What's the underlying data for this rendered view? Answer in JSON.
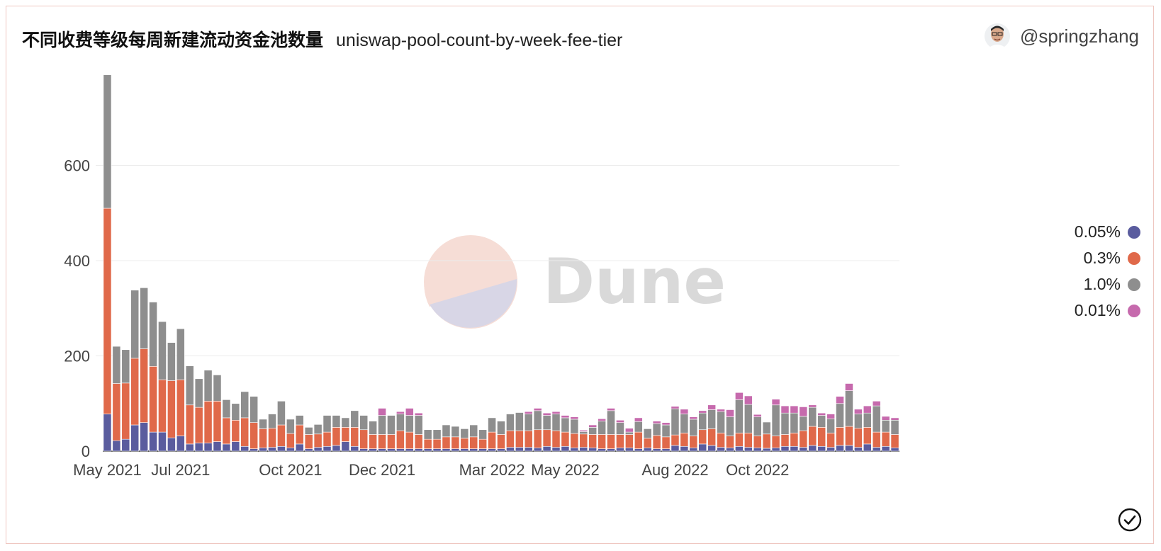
{
  "header": {
    "title": "不同收费等级每周新建流动资金池数量",
    "subtitle": "uniswap-pool-count-by-week-fee-tier",
    "author": "@springzhang"
  },
  "watermark": {
    "text": "Dune"
  },
  "icons": {
    "avatar": "avatar-icon",
    "verified": "checkmark-circle-icon"
  },
  "chart_data": {
    "type": "bar",
    "stacked": true,
    "grid": true,
    "legend_position": "right",
    "ylim": [
      0,
      790
    ],
    "yticks": [
      0,
      200,
      400,
      600
    ],
    "xticks": [
      {
        "label": "May 2021",
        "index": 0
      },
      {
        "label": "Jul 2021",
        "index": 8
      },
      {
        "label": "Oct 2021",
        "index": 20
      },
      {
        "label": "Dec 2021",
        "index": 30
      },
      {
        "label": "Mar 2022",
        "index": 42
      },
      {
        "label": "May 2022",
        "index": 50
      },
      {
        "label": "Aug 2022",
        "index": 62
      },
      {
        "label": "Oct 2022",
        "index": 71
      }
    ],
    "series": [
      {
        "name": "0.05%",
        "color": "#5a5c9e",
        "values": [
          78,
          22,
          25,
          55,
          60,
          40,
          40,
          28,
          32,
          15,
          17,
          17,
          20,
          15,
          20,
          10,
          5,
          7,
          8,
          10,
          7,
          15,
          5,
          8,
          10,
          12,
          20,
          10,
          5,
          5,
          5,
          5,
          5,
          5,
          5,
          5,
          5,
          5,
          5,
          5,
          5,
          5,
          5,
          5,
          8,
          8,
          8,
          7,
          10,
          8,
          10,
          7,
          8,
          7,
          5,
          5,
          7,
          7,
          5,
          7,
          5,
          5,
          12,
          10,
          7,
          15,
          12,
          8,
          7,
          10,
          8,
          7,
          6,
          7,
          10,
          10,
          8,
          12,
          10,
          8,
          12,
          12,
          8,
          15,
          8,
          10,
          7
        ]
      },
      {
        "name": "0.3%",
        "color": "#e0694a",
        "values": [
          432,
          120,
          118,
          140,
          155,
          138,
          110,
          120,
          118,
          82,
          75,
          88,
          85,
          55,
          45,
          60,
          55,
          40,
          40,
          45,
          30,
          40,
          30,
          28,
          30,
          38,
          30,
          40,
          40,
          30,
          30,
          30,
          38,
          35,
          30,
          20,
          20,
          25,
          25,
          22,
          25,
          20,
          35,
          30,
          35,
          35,
          35,
          38,
          35,
          35,
          30,
          30,
          28,
          28,
          30,
          30,
          28,
          28,
          35,
          20,
          28,
          25,
          22,
          28,
          25,
          30,
          35,
          30,
          25,
          28,
          30,
          25,
          30,
          25,
          25,
          28,
          35,
          40,
          40,
          30,
          38,
          40,
          40,
          35,
          32,
          30,
          28
        ]
      },
      {
        "name": "1.0%",
        "color": "#8e8e8e",
        "values": [
          280,
          78,
          70,
          143,
          128,
          135,
          122,
          80,
          107,
          82,
          60,
          65,
          55,
          38,
          35,
          55,
          55,
          20,
          30,
          50,
          30,
          20,
          15,
          20,
          35,
          25,
          20,
          35,
          30,
          28,
          40,
          40,
          35,
          35,
          40,
          20,
          20,
          25,
          22,
          20,
          25,
          20,
          30,
          28,
          35,
          38,
          35,
          40,
          30,
          35,
          30,
          30,
          5,
          15,
          28,
          50,
          25,
          5,
          22,
          20,
          25,
          25,
          55,
          40,
          35,
          35,
          40,
          45,
          40,
          70,
          60,
          40,
          25,
          65,
          45,
          42,
          30,
          40,
          25,
          30,
          50,
          75,
          30,
          30,
          55,
          25,
          30
        ]
      },
      {
        "name": "0.01%",
        "color": "#c66aad",
        "values": [
          0,
          0,
          0,
          0,
          0,
          0,
          0,
          0,
          0,
          0,
          0,
          0,
          0,
          0,
          0,
          0,
          0,
          0,
          0,
          0,
          0,
          0,
          0,
          0,
          0,
          0,
          0,
          0,
          0,
          0,
          15,
          0,
          5,
          15,
          5,
          0,
          0,
          0,
          0,
          0,
          0,
          0,
          0,
          0,
          0,
          0,
          5,
          5,
          5,
          5,
          5,
          5,
          3,
          5,
          5,
          5,
          5,
          8,
          8,
          0,
          5,
          5,
          5,
          10,
          5,
          5,
          10,
          5,
          15,
          15,
          18,
          5,
          0,
          12,
          15,
          15,
          20,
          5,
          5,
          10,
          15,
          15,
          10,
          15,
          10,
          8,
          5
        ]
      }
    ]
  }
}
